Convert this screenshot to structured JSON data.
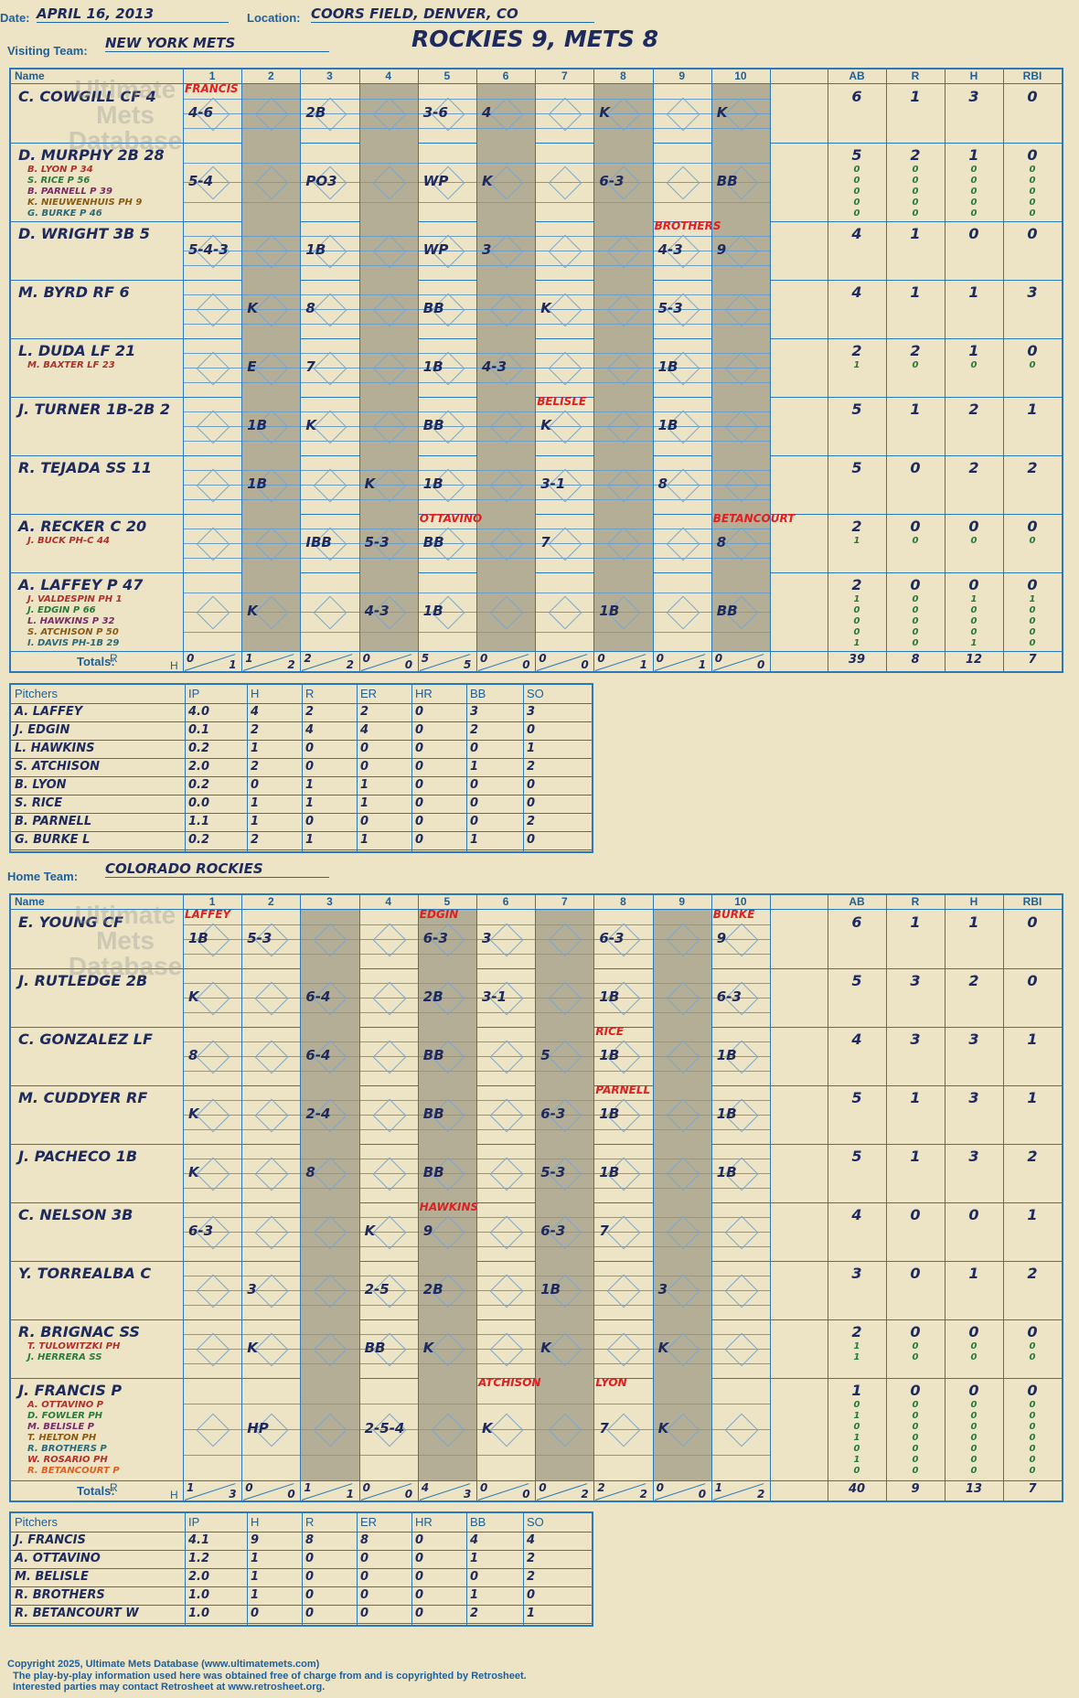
{
  "header": {
    "date_label": "Date:",
    "date": "APRIL 16, 2013",
    "location_label": "Location:",
    "location": "COORS FIELD, DENVER, CO",
    "visiting_label": "Visiting Team:",
    "visiting_team": "NEW YORK METS",
    "home_label": "Home Team:",
    "home_team": "COLORADO ROCKIES",
    "score_title": "ROCKIES 9, METS 8"
  },
  "columns": {
    "name": "Name",
    "innings": [
      "1",
      "2",
      "3",
      "4",
      "5",
      "6",
      "7",
      "8",
      "9",
      "10"
    ],
    "stats": [
      "AB",
      "R",
      "H",
      "RBI"
    ]
  },
  "watermark": {
    "line1": "Ultimate",
    "line2": "Mets",
    "line3": "Database"
  },
  "visitors": {
    "rows": [
      {
        "name": "C. COWGILL CF  4",
        "subs": [],
        "stats": [
          "6",
          "1",
          "3",
          "0"
        ],
        "sub_stats": [],
        "plays": [
          {
            "inning": 1,
            "text": "4-6"
          },
          {
            "inning": 3,
            "text": "2B"
          },
          {
            "inning": 5,
            "text": "3-6"
          },
          {
            "inning": 6,
            "text": "4"
          },
          {
            "inning": 8,
            "text": "K"
          },
          {
            "inning": 10,
            "text": "K"
          }
        ]
      },
      {
        "name": "D. MURPHY 2B  28",
        "subs": [
          "B. LYON P  34",
          "S. RICE P  56",
          "B. PARNELL P  39",
          "K. NIEUWENHUIS PH  9",
          "G. BURKE P  46"
        ],
        "stats": [
          "5",
          "2",
          "1",
          "0"
        ],
        "sub_stats": [
          [
            "0",
            "0",
            "0",
            "0"
          ],
          [
            "0",
            "0",
            "0",
            "0"
          ],
          [
            "0",
            "0",
            "0",
            "0"
          ],
          [
            "0",
            "0",
            "0",
            "0"
          ],
          [
            "0",
            "0",
            "0",
            "0"
          ]
        ],
        "plays": [
          {
            "inning": 1,
            "text": "5-4"
          },
          {
            "inning": 3,
            "text": "PO3"
          },
          {
            "inning": 5,
            "text": "WP"
          },
          {
            "inning": 6,
            "text": "K"
          },
          {
            "inning": 8,
            "text": "6-3"
          },
          {
            "inning": 10,
            "text": "BB"
          }
        ]
      },
      {
        "name": "D. WRIGHT 3B  5",
        "subs": [],
        "stats": [
          "4",
          "1",
          "0",
          "0"
        ],
        "sub_stats": [],
        "plays": [
          {
            "inning": 1,
            "text": "5-4-3"
          },
          {
            "inning": 3,
            "text": "1B"
          },
          {
            "inning": 5,
            "text": "WP"
          },
          {
            "inning": 6,
            "text": "3"
          },
          {
            "inning": 9,
            "text": "4-3"
          },
          {
            "inning": 10,
            "text": "9"
          }
        ]
      },
      {
        "name": "M. BYRD RF  6",
        "subs": [],
        "stats": [
          "4",
          "1",
          "1",
          "3"
        ],
        "sub_stats": [],
        "plays": [
          {
            "inning": 2,
            "text": "K"
          },
          {
            "inning": 3,
            "text": "8"
          },
          {
            "inning": 5,
            "text": "BB"
          },
          {
            "inning": 7,
            "text": "K"
          },
          {
            "inning": 9,
            "text": "5-3"
          }
        ]
      },
      {
        "name": "L. DUDA LF  21",
        "subs": [
          "M. BAXTER LF  23"
        ],
        "stats": [
          "2",
          "2",
          "1",
          "0"
        ],
        "sub_stats": [
          [
            "1",
            "0",
            "0",
            "0"
          ]
        ],
        "plays": [
          {
            "inning": 2,
            "text": "E"
          },
          {
            "inning": 3,
            "text": "7"
          },
          {
            "inning": 5,
            "text": "1B"
          },
          {
            "inning": 6,
            "text": "4-3"
          },
          {
            "inning": 9,
            "text": "1B"
          }
        ]
      },
      {
        "name": "J. TURNER 1B-2B  2",
        "subs": [],
        "stats": [
          "5",
          "1",
          "2",
          "1"
        ],
        "sub_stats": [],
        "plays": [
          {
            "inning": 2,
            "text": "1B"
          },
          {
            "inning": 3,
            "text": "K"
          },
          {
            "inning": 5,
            "text": "BB"
          },
          {
            "inning": 7,
            "text": "K"
          },
          {
            "inning": 9,
            "text": "1B"
          }
        ]
      },
      {
        "name": "R. TEJADA SS  11",
        "subs": [],
        "stats": [
          "5",
          "0",
          "2",
          "2"
        ],
        "sub_stats": [],
        "plays": [
          {
            "inning": 2,
            "text": "1B"
          },
          {
            "inning": 4,
            "text": "K"
          },
          {
            "inning": 5,
            "text": "1B"
          },
          {
            "inning": 7,
            "text": "3-1"
          },
          {
            "inning": 9,
            "text": "8"
          }
        ]
      },
      {
        "name": "A. RECKER C  20",
        "subs": [
          "J. BUCK PH-C  44"
        ],
        "stats": [
          "2",
          "0",
          "0",
          "0"
        ],
        "sub_stats": [
          [
            "1",
            "0",
            "0",
            "0"
          ]
        ],
        "plays": [
          {
            "inning": 3,
            "text": "IBB"
          },
          {
            "inning": 4,
            "text": "5-3"
          },
          {
            "inning": 5,
            "text": "BB"
          },
          {
            "inning": 7,
            "text": "7"
          },
          {
            "inning": 10,
            "text": "8"
          }
        ]
      },
      {
        "name": "A. LAFFEY P  47",
        "subs": [
          "J. VALDESPIN PH  1",
          "J. EDGIN P  66",
          "L. HAWKINS P  32",
          "S. ATCHISON P  50",
          "I. DAVIS PH-1B  29"
        ],
        "stats": [
          "2",
          "0",
          "0",
          "0"
        ],
        "sub_stats": [
          [
            "1",
            "0",
            "1",
            "1"
          ],
          [
            "0",
            "0",
            "0",
            "0"
          ],
          [
            "0",
            "0",
            "0",
            "0"
          ],
          [
            "0",
            "0",
            "0",
            "0"
          ],
          [
            "1",
            "0",
            "1",
            "0"
          ]
        ],
        "plays": [
          {
            "inning": 2,
            "text": "K"
          },
          {
            "inning": 4,
            "text": "4-3"
          },
          {
            "inning": 5,
            "text": "1B"
          },
          {
            "inning": 8,
            "text": "1B"
          },
          {
            "inning": 10,
            "text": "BB"
          }
        ]
      }
    ],
    "markers": [
      {
        "text": "FRANCIS",
        "row": 0,
        "inning": 1
      },
      {
        "text": "BROTHERS",
        "row": 2,
        "inning": 9
      },
      {
        "text": "BELISLE",
        "row": 5,
        "inning": 7
      },
      {
        "text": "OTTAVINO",
        "row": 7,
        "inning": 5
      },
      {
        "text": "BETANCOURT",
        "row": 7,
        "inning": 10
      }
    ],
    "totals_label": "Totals:",
    "totals_rh": [
      "R",
      "H"
    ],
    "totals": [
      [
        "0",
        "1"
      ],
      [
        "1",
        "2"
      ],
      [
        "2",
        "2"
      ],
      [
        "0",
        "0"
      ],
      [
        "5",
        "5"
      ],
      [
        "0",
        "0"
      ],
      [
        "0",
        "0"
      ],
      [
        "0",
        "1"
      ],
      [
        "0",
        "1"
      ],
      [
        "0",
        "0"
      ]
    ],
    "totals_stats": [
      "39",
      "8",
      "12",
      "7"
    ]
  },
  "visitor_pitchers": {
    "header": [
      "Pitchers",
      "IP",
      "H",
      "R",
      "ER",
      "HR",
      "BB",
      "SO"
    ],
    "rows": [
      [
        "A. LAFFEY",
        "4.0",
        "4",
        "2",
        "2",
        "0",
        "3",
        "3"
      ],
      [
        "J. EDGIN",
        "0.1",
        "2",
        "4",
        "4",
        "0",
        "2",
        "0"
      ],
      [
        "L. HAWKINS",
        "0.2",
        "1",
        "0",
        "0",
        "0",
        "0",
        "1"
      ],
      [
        "S. ATCHISON",
        "2.0",
        "2",
        "0",
        "0",
        "0",
        "1",
        "2"
      ],
      [
        "B. LYON",
        "0.2",
        "0",
        "1",
        "1",
        "0",
        "0",
        "0"
      ],
      [
        "S. RICE",
        "0.0",
        "1",
        "1",
        "1",
        "0",
        "0",
        "0"
      ],
      [
        "B. PARNELL",
        "1.1",
        "1",
        "0",
        "0",
        "0",
        "0",
        "2"
      ],
      [
        "G. BURKE  L",
        "0.2",
        "2",
        "1",
        "1",
        "0",
        "1",
        "0"
      ]
    ]
  },
  "home": {
    "rows": [
      {
        "name": "E. YOUNG CF",
        "subs": [],
        "stats": [
          "6",
          "1",
          "1",
          "0"
        ],
        "sub_stats": [],
        "plays": [
          {
            "inning": 1,
            "text": "1B"
          },
          {
            "inning": 2,
            "text": "5-3"
          },
          {
            "inning": 5,
            "text": "6-3"
          },
          {
            "inning": 6,
            "text": "3"
          },
          {
            "inning": 8,
            "text": "6-3"
          },
          {
            "inning": 10,
            "text": "9"
          }
        ]
      },
      {
        "name": "J. RUTLEDGE 2B",
        "subs": [],
        "stats": [
          "5",
          "3",
          "2",
          "0"
        ],
        "sub_stats": [],
        "plays": [
          {
            "inning": 1,
            "text": "K"
          },
          {
            "inning": 3,
            "text": "6-4"
          },
          {
            "inning": 5,
            "text": "2B"
          },
          {
            "inning": 6,
            "text": "3-1"
          },
          {
            "inning": 8,
            "text": "1B"
          },
          {
            "inning": 10,
            "text": "6-3"
          }
        ]
      },
      {
        "name": "C. GONZALEZ LF",
        "subs": [],
        "stats": [
          "4",
          "3",
          "3",
          "1"
        ],
        "sub_stats": [],
        "plays": [
          {
            "inning": 1,
            "text": "8"
          },
          {
            "inning": 3,
            "text": "6-4"
          },
          {
            "inning": 5,
            "text": "BB"
          },
          {
            "inning": 7,
            "text": "5"
          },
          {
            "inning": 8,
            "text": "1B"
          },
          {
            "inning": 10,
            "text": "1B"
          }
        ]
      },
      {
        "name": "M. CUDDYER RF",
        "subs": [],
        "stats": [
          "5",
          "1",
          "3",
          "1"
        ],
        "sub_stats": [],
        "plays": [
          {
            "inning": 1,
            "text": "K"
          },
          {
            "inning": 3,
            "text": "2-4"
          },
          {
            "inning": 5,
            "text": "BB"
          },
          {
            "inning": 7,
            "text": "6-3"
          },
          {
            "inning": 8,
            "text": "1B"
          },
          {
            "inning": 10,
            "text": "1B"
          }
        ]
      },
      {
        "name": "J. PACHECO 1B",
        "subs": [],
        "stats": [
          "5",
          "1",
          "3",
          "2"
        ],
        "sub_stats": [],
        "plays": [
          {
            "inning": 1,
            "text": "K"
          },
          {
            "inning": 3,
            "text": "8"
          },
          {
            "inning": 5,
            "text": "BB"
          },
          {
            "inning": 7,
            "text": "5-3"
          },
          {
            "inning": 8,
            "text": "1B"
          },
          {
            "inning": 10,
            "text": "1B"
          }
        ]
      },
      {
        "name": "C. NELSON 3B",
        "subs": [],
        "stats": [
          "4",
          "0",
          "0",
          "1"
        ],
        "sub_stats": [],
        "plays": [
          {
            "inning": 1,
            "text": "6-3"
          },
          {
            "inning": 4,
            "text": "K"
          },
          {
            "inning": 5,
            "text": "9"
          },
          {
            "inning": 7,
            "text": "6-3"
          },
          {
            "inning": 8,
            "text": "7"
          }
        ]
      },
      {
        "name": "Y. TORREALBA C",
        "subs": [],
        "stats": [
          "3",
          "0",
          "1",
          "2"
        ],
        "sub_stats": [],
        "plays": [
          {
            "inning": 2,
            "text": "3"
          },
          {
            "inning": 4,
            "text": "2-5"
          },
          {
            "inning": 5,
            "text": "2B"
          },
          {
            "inning": 7,
            "text": "1B"
          },
          {
            "inning": 9,
            "text": "3"
          }
        ]
      },
      {
        "name": "R. BRIGNAC SS",
        "subs": [
          "T. TULOWITZKI PH",
          "J. HERRERA SS"
        ],
        "stats": [
          "2",
          "0",
          "0",
          "0"
        ],
        "sub_stats": [
          [
            "1",
            "0",
            "0",
            "0"
          ],
          [
            "1",
            "0",
            "0",
            "0"
          ]
        ],
        "plays": [
          {
            "inning": 2,
            "text": "K"
          },
          {
            "inning": 4,
            "text": "BB"
          },
          {
            "inning": 5,
            "text": "K"
          },
          {
            "inning": 7,
            "text": "K"
          },
          {
            "inning": 9,
            "text": "K"
          }
        ]
      },
      {
        "name": "J. FRANCIS P",
        "subs": [
          "A. OTTAVINO P",
          "D. FOWLER PH",
          "M. BELISLE P",
          "T. HELTON PH",
          "R. BROTHERS P",
          "W. ROSARIO PH",
          "R. BETANCOURT P"
        ],
        "stats": [
          "1",
          "0",
          "0",
          "0"
        ],
        "sub_stats": [
          [
            "0",
            "0",
            "0",
            "0"
          ],
          [
            "1",
            "0",
            "0",
            "0"
          ],
          [
            "0",
            "0",
            "0",
            "0"
          ],
          [
            "1",
            "0",
            "0",
            "0"
          ],
          [
            "0",
            "0",
            "0",
            "0"
          ],
          [
            "1",
            "0",
            "0",
            "0"
          ],
          [
            "0",
            "0",
            "0",
            "0"
          ]
        ],
        "plays": [
          {
            "inning": 2,
            "text": "HP"
          },
          {
            "inning": 4,
            "text": "2-5-4"
          },
          {
            "inning": 6,
            "text": "K"
          },
          {
            "inning": 8,
            "text": "7"
          },
          {
            "inning": 9,
            "text": "K"
          }
        ]
      }
    ],
    "markers": [
      {
        "text": "LAFFEY",
        "row": 0,
        "inning": 1
      },
      {
        "text": "EDGIN",
        "row": 0,
        "inning": 5
      },
      {
        "text": "BURKE",
        "row": 0,
        "inning": 10
      },
      {
        "text": "RICE",
        "row": 2,
        "inning": 8
      },
      {
        "text": "PARNELL",
        "row": 3,
        "inning": 8
      },
      {
        "text": "HAWKINS",
        "row": 5,
        "inning": 5
      },
      {
        "text": "ATCHISON",
        "row": 8,
        "inning": 6
      },
      {
        "text": "LYON",
        "row": 8,
        "inning": 8
      }
    ],
    "totals_label": "Totals:",
    "totals_rh": [
      "R",
      "H"
    ],
    "totals": [
      [
        "1",
        "3"
      ],
      [
        "0",
        "0"
      ],
      [
        "1",
        "1"
      ],
      [
        "0",
        "0"
      ],
      [
        "4",
        "3"
      ],
      [
        "0",
        "0"
      ],
      [
        "0",
        "2"
      ],
      [
        "2",
        "2"
      ],
      [
        "0",
        "0"
      ],
      [
        "1",
        "2"
      ]
    ],
    "totals_stats": [
      "40",
      "9",
      "13",
      "7"
    ]
  },
  "home_pitchers": {
    "header": [
      "Pitchers",
      "IP",
      "H",
      "R",
      "ER",
      "HR",
      "BB",
      "SO"
    ],
    "rows": [
      [
        "J. FRANCIS",
        "4.1",
        "9",
        "8",
        "8",
        "0",
        "4",
        "4"
      ],
      [
        "A. OTTAVINO",
        "1.2",
        "1",
        "0",
        "0",
        "0",
        "1",
        "2"
      ],
      [
        "M. BELISLE",
        "2.0",
        "1",
        "0",
        "0",
        "0",
        "0",
        "2"
      ],
      [
        "R. BROTHERS",
        "1.0",
        "1",
        "0",
        "0",
        "0",
        "1",
        "0"
      ],
      [
        "R. BETANCOURT  W",
        "1.0",
        "0",
        "0",
        "0",
        "0",
        "2",
        "1"
      ]
    ]
  },
  "footer": {
    "line1": "Copyright 2025, Ultimate Mets Database (www.ultimatemets.com)",
    "line2": "The play-by-play information used here was obtained free of charge from and is copyrighted by Retrosheet.",
    "line3": "Interested parties may contact Retrosheet at www.retrosheet.org."
  },
  "colors": {
    "ink": "#1e2a5e",
    "grid": "#2a78b8",
    "paper": "#ece4c5",
    "shade": "#b5ae96",
    "marker": "#e02020"
  }
}
